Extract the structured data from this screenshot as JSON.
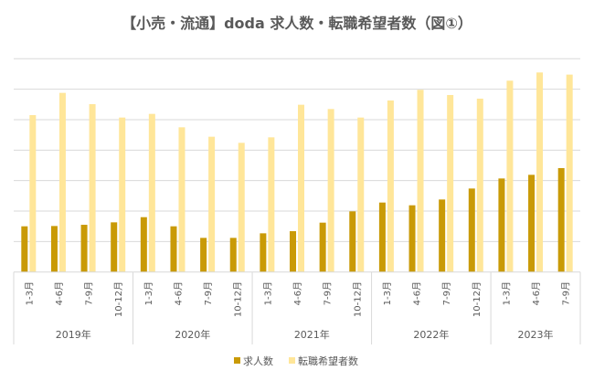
{
  "chart_data": {
    "type": "bar",
    "title": "【小売・流通】doda 求人数・転職希望者数（図①）",
    "xlabel": "",
    "ylabel": "",
    "y_tick_labels_shown": false,
    "grid": true,
    "legend_position": "bottom",
    "ylim": [
      0,
      7
    ],
    "groups": [
      {
        "label": "2019年",
        "categories": [
          "1-3月",
          "4-6月",
          "7-9月",
          "10-12月"
        ]
      },
      {
        "label": "2020年",
        "categories": [
          "1-3月",
          "4-6月",
          "7-9月",
          "10-12月"
        ]
      },
      {
        "label": "2021年",
        "categories": [
          "1-3月",
          "4-6月",
          "7-9月",
          "10-12月"
        ]
      },
      {
        "label": "2022年",
        "categories": [
          "1-3月",
          "4-6月",
          "7-9月",
          "10-12月"
        ]
      },
      {
        "label": "2023年",
        "categories": [
          "1-3月",
          "4-6月",
          "7-9月"
        ]
      }
    ],
    "series": [
      {
        "name": "求人数",
        "color": "#C99A06",
        "values": [
          1.5,
          1.51,
          1.55,
          1.63,
          1.8,
          1.5,
          1.12,
          1.12,
          1.27,
          1.34,
          1.62,
          1.99,
          2.28,
          2.19,
          2.38,
          2.74,
          3.07,
          3.19,
          3.41
        ]
      },
      {
        "name": "転職希望者数",
        "color": "#FFE699",
        "values": [
          5.15,
          5.88,
          5.51,
          5.07,
          5.19,
          4.75,
          4.44,
          4.24,
          4.42,
          5.49,
          5.35,
          5.07,
          5.63,
          5.98,
          5.81,
          5.69,
          6.28,
          6.55,
          6.48
        ]
      }
    ]
  }
}
